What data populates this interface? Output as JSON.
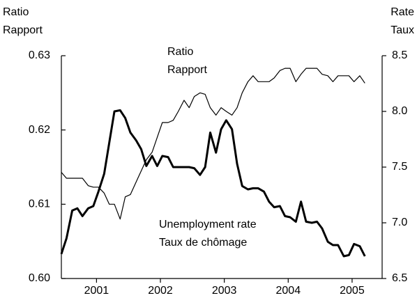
{
  "chart_data": {
    "type": "line",
    "ylabel": [
      "Ratio",
      "Rapport"
    ],
    "y2label": [
      "Rate",
      "Taux"
    ],
    "xlim": [
      2000.95,
      2005.97
    ],
    "xticks": [
      {
        "value": 2001.5,
        "label": "2001"
      },
      {
        "value": 2002.5,
        "label": "2002"
      },
      {
        "value": 2003.5,
        "label": "2003"
      },
      {
        "value": 2004.5,
        "label": "2004"
      },
      {
        "value": 2005.5,
        "label": "2005"
      }
    ],
    "ylim": [
      0.6,
      0.63
    ],
    "yticks": [
      {
        "value": 0.6,
        "label": "0.60"
      },
      0.61,
      0.62,
      0.63
    ],
    "y2lim": [
      6.5,
      8.5
    ],
    "y2ticks": [
      6.5,
      {
        "value": 7,
        "label": "7.0"
      },
      7.5,
      {
        "value": 8,
        "label": "8.0"
      },
      8.5
    ],
    "x": [
      2000.95,
      2001.03,
      2001.12,
      2001.2,
      2001.28,
      2001.37,
      2001.45,
      2001.53,
      2001.62,
      2001.7,
      2001.78,
      2001.87,
      2001.95,
      2002.03,
      2002.12,
      2002.2,
      2002.28,
      2002.37,
      2002.45,
      2002.53,
      2002.62,
      2002.7,
      2002.78,
      2002.87,
      2002.95,
      2003.03,
      2003.12,
      2003.2,
      2003.28,
      2003.37,
      2003.45,
      2003.53,
      2003.62,
      2003.7,
      2003.78,
      2003.87,
      2003.95,
      2004.03,
      2004.12,
      2004.2,
      2004.28,
      2004.37,
      2004.45,
      2004.53,
      2004.62,
      2004.7,
      2004.78,
      2004.87,
      2004.95,
      2005.03,
      2005.12,
      2005.2,
      2005.28,
      2005.37,
      2005.45,
      2005.53,
      2005.62,
      2005.7
    ],
    "series": [
      {
        "label_lines": [
          "Ratio",
          "Rapport"
        ],
        "color": "#000000",
        "width": 1.2,
        "values": [
          0.6143,
          0.6135,
          0.6135,
          0.6135,
          0.6135,
          0.6125,
          0.6123,
          0.6123,
          0.6115,
          0.61,
          0.61,
          0.608,
          0.611,
          0.6113,
          0.613,
          0.6145,
          0.616,
          0.617,
          0.619,
          0.621,
          0.621,
          0.6213,
          0.6225,
          0.624,
          0.623,
          0.6245,
          0.625,
          0.6248,
          0.623,
          0.622,
          0.623,
          0.6225,
          0.622,
          0.623,
          0.625,
          0.6265,
          0.6273,
          0.6265,
          0.6265,
          0.6265,
          0.627,
          0.628,
          0.6283,
          0.6283,
          0.6265,
          0.6275,
          0.6283,
          0.6283,
          0.6283,
          0.6275,
          0.6273,
          0.6265,
          0.6273,
          0.6273,
          0.6273,
          0.6265,
          0.6273,
          0.6263
        ]
      },
      {
        "label_lines": [
          "Unemployment rate",
          "Taux de chômage"
        ],
        "color": "#000000",
        "width": 3,
        "axis": "y2",
        "values": [
          6.72,
          6.86,
          7.11,
          7.13,
          7.06,
          7.13,
          7.15,
          7.28,
          7.44,
          7.72,
          8.0,
          8.01,
          7.94,
          7.81,
          7.74,
          7.66,
          7.51,
          7.6,
          7.51,
          7.6,
          7.59,
          7.5,
          7.5,
          7.5,
          7.5,
          7.49,
          7.43,
          7.5,
          7.81,
          7.63,
          7.84,
          7.92,
          7.84,
          7.53,
          7.33,
          7.3,
          7.31,
          7.31,
          7.28,
          7.19,
          7.14,
          7.15,
          7.06,
          7.05,
          7.01,
          7.19,
          7.01,
          7.0,
          7.01,
          6.95,
          6.83,
          6.8,
          6.8,
          6.7,
          6.71,
          6.81,
          6.79,
          6.7
        ]
      }
    ]
  }
}
